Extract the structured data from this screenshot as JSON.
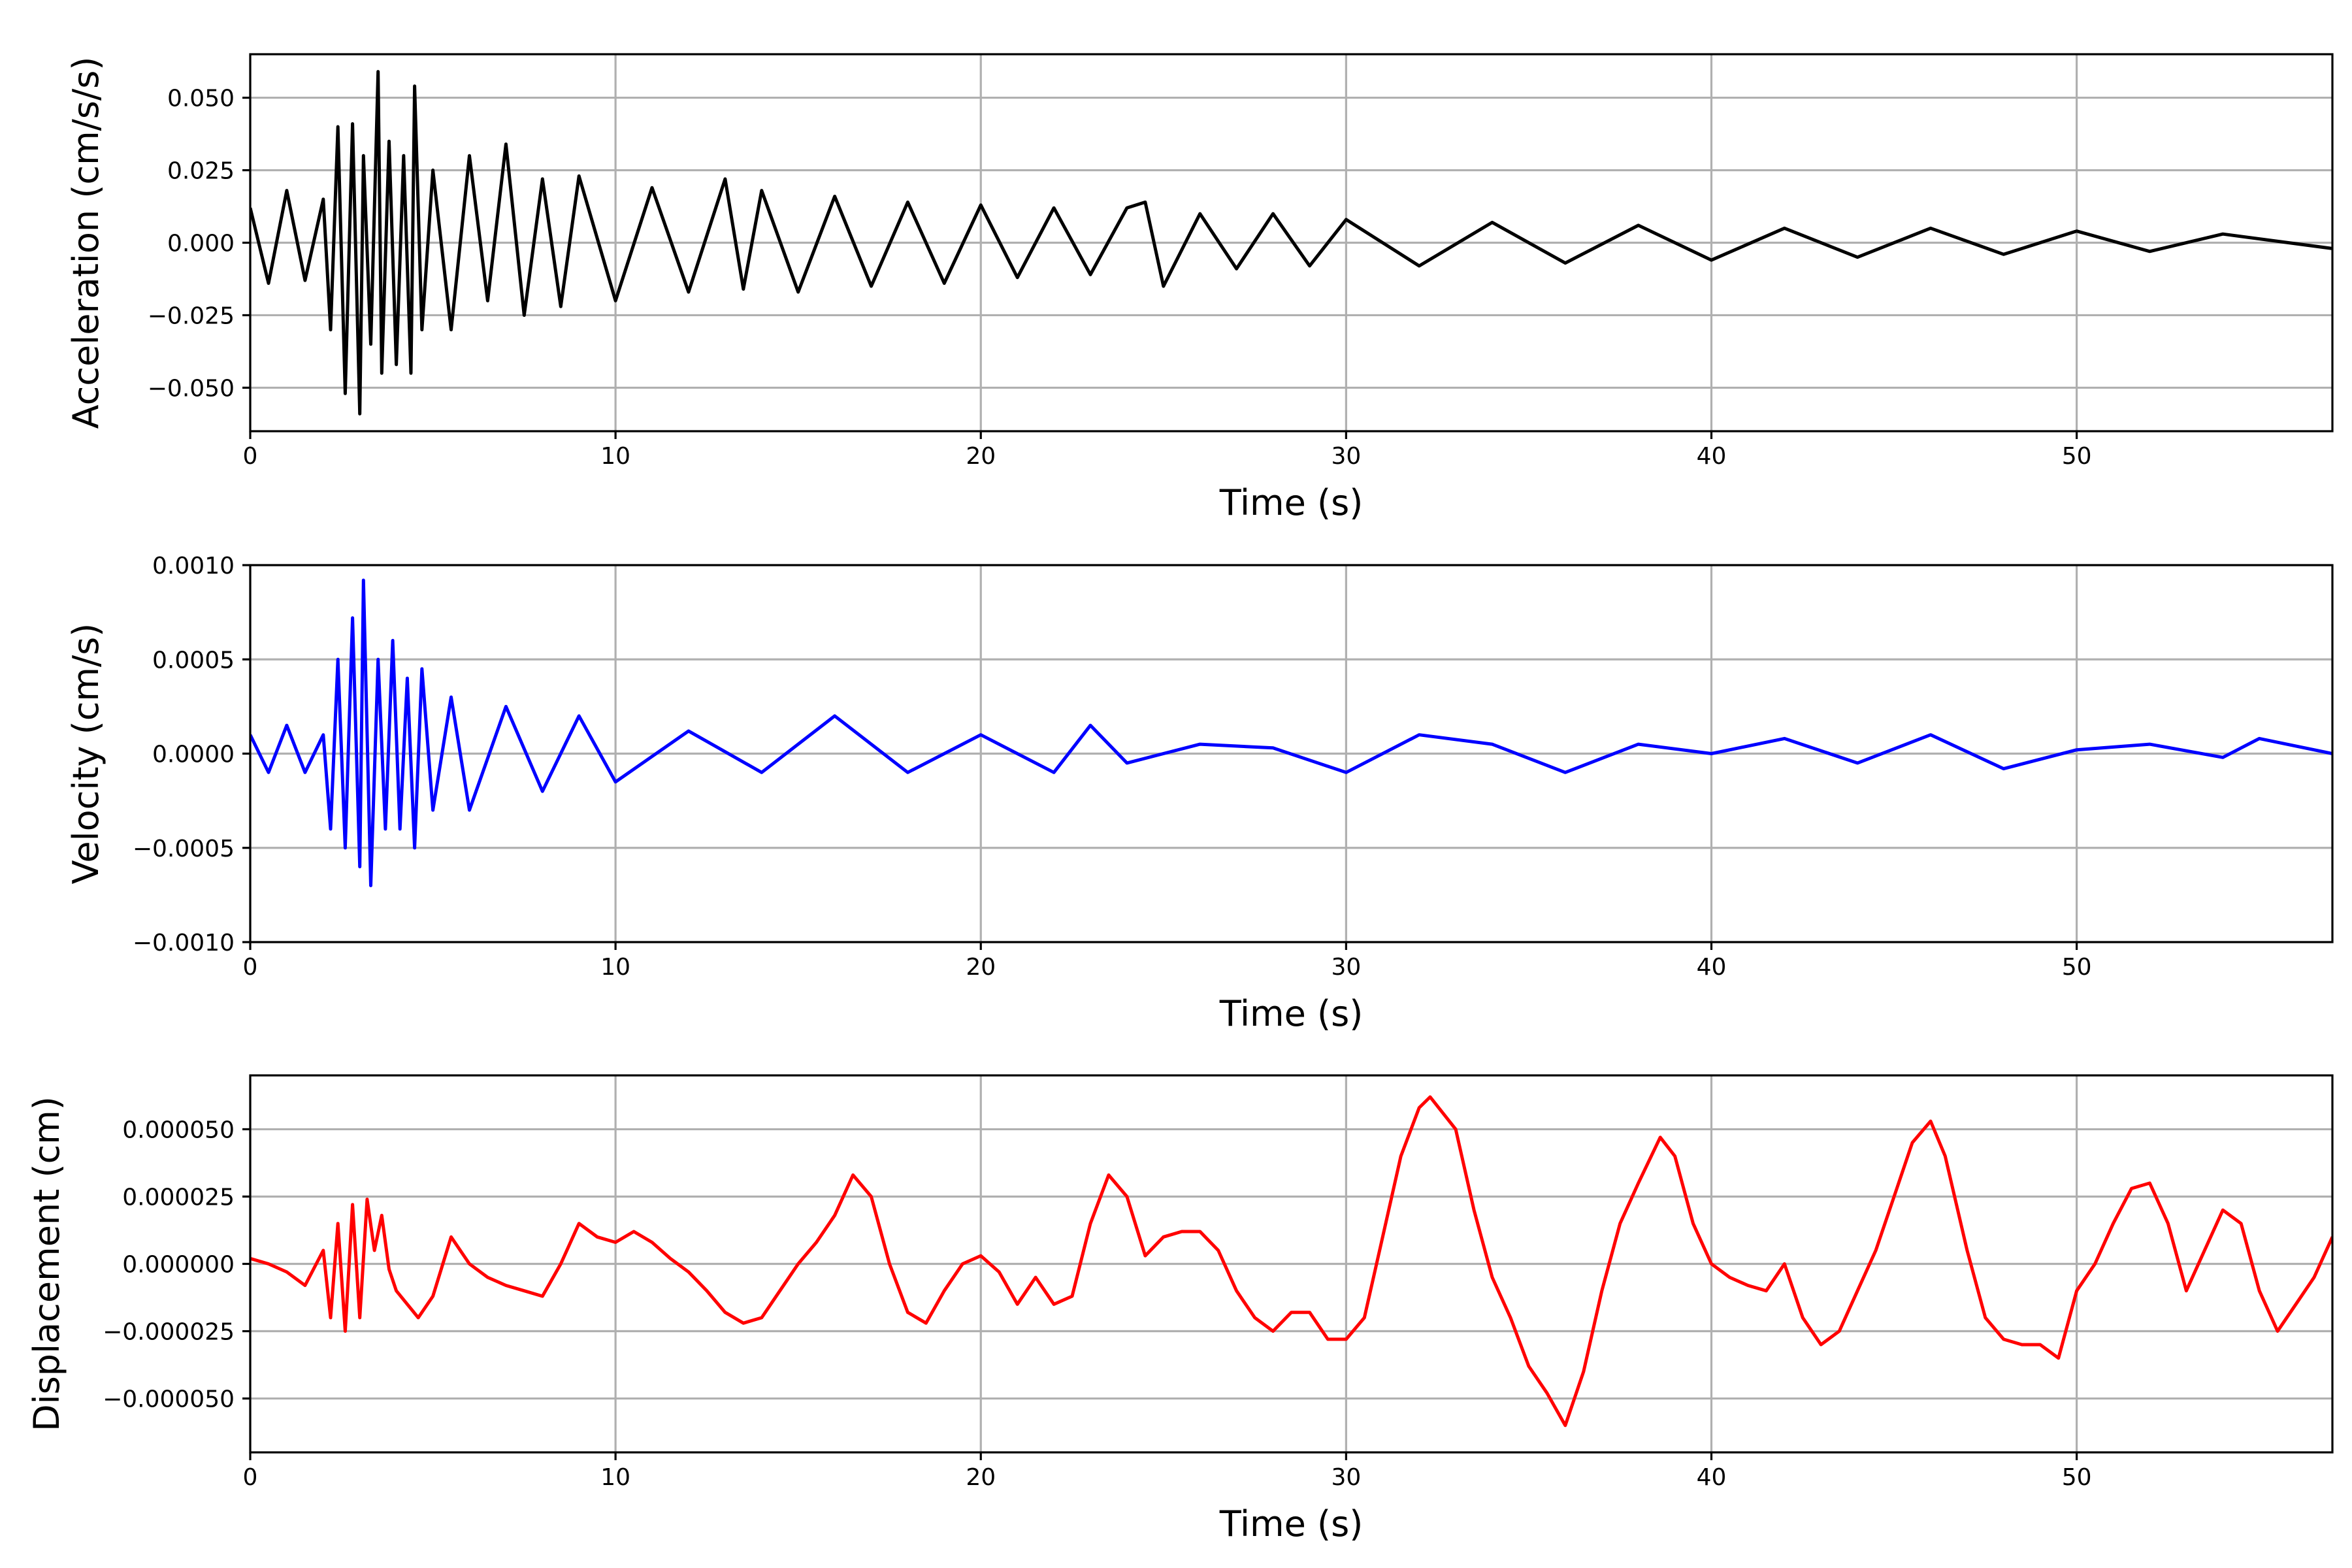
{
  "chart_data": [
    {
      "type": "line",
      "title": "",
      "xlabel": "Time (s)",
      "ylabel": "Acceleration (cm/s/s)",
      "xlim": [
        0,
        57
      ],
      "ylim": [
        -0.065,
        0.065
      ],
      "x_ticks": [
        0,
        10,
        20,
        30,
        40,
        50
      ],
      "y_ticks": [
        -0.05,
        -0.025,
        0,
        0.025,
        0.05
      ],
      "x_tick_labels": [
        "0",
        "10",
        "20",
        "30",
        "40",
        "50"
      ],
      "y_tick_labels": [
        "−0.050",
        "−0.025",
        "0.000",
        "0.025",
        "0.050"
      ],
      "grid": true,
      "color": "#000000",
      "series": [
        {
          "x": [
            0,
            0.5,
            1,
            1.5,
            2,
            2.2,
            2.4,
            2.6,
            2.8,
            3.0,
            3.1,
            3.3,
            3.5,
            3.6,
            3.8,
            4.0,
            4.2,
            4.4,
            4.5,
            4.7,
            5.0,
            5.5,
            6.0,
            6.5,
            7.0,
            7.5,
            8.0,
            8.5,
            9.0,
            10,
            11,
            12,
            13,
            13.5,
            14,
            15,
            16,
            17,
            18,
            19,
            20,
            21,
            22,
            23,
            24,
            24.5,
            25,
            26,
            27,
            28,
            29,
            30,
            32,
            34,
            36,
            38,
            40,
            42,
            44,
            46,
            48,
            50,
            52,
            54,
            57
          ],
          "y": [
            0.012,
            -0.014,
            0.018,
            -0.013,
            0.015,
            -0.03,
            0.04,
            -0.052,
            0.041,
            -0.059,
            0.03,
            -0.035,
            0.059,
            -0.045,
            0.035,
            -0.042,
            0.03,
            -0.045,
            0.054,
            -0.03,
            0.025,
            -0.03,
            0.03,
            -0.02,
            0.034,
            -0.025,
            0.022,
            -0.022,
            0.023,
            -0.02,
            0.019,
            -0.017,
            0.022,
            -0.016,
            0.018,
            -0.017,
            0.016,
            -0.015,
            0.014,
            -0.014,
            0.013,
            -0.012,
            0.012,
            -0.011,
            0.012,
            0.014,
            -0.015,
            0.01,
            -0.009,
            0.01,
            -0.008,
            0.008,
            -0.008,
            0.007,
            -0.007,
            0.006,
            -0.006,
            0.005,
            -0.005,
            0.005,
            -0.004,
            0.004,
            -0.003,
            0.003,
            -0.002
          ]
        }
      ]
    },
    {
      "type": "line",
      "title": "",
      "xlabel": "Time (s)",
      "ylabel": "Velocity (cm/s)",
      "xlim": [
        0,
        57
      ],
      "ylim": [
        -0.001,
        0.001
      ],
      "x_ticks": [
        0,
        10,
        20,
        30,
        40,
        50
      ],
      "y_ticks": [
        -0.001,
        -0.0005,
        0,
        0.0005,
        0.001
      ],
      "x_tick_labels": [
        "0",
        "10",
        "20",
        "30",
        "40",
        "50"
      ],
      "y_tick_labels": [
        "−0.0010",
        "−0.0005",
        "0.0000",
        "0.0005",
        "0.0010"
      ],
      "grid": true,
      "color": "#0000ff",
      "series": [
        {
          "x": [
            0,
            0.5,
            1,
            1.5,
            2,
            2.2,
            2.4,
            2.6,
            2.8,
            3.0,
            3.1,
            3.3,
            3.5,
            3.7,
            3.9,
            4.1,
            4.3,
            4.5,
            4.7,
            5.0,
            5.5,
            6.0,
            7.0,
            8.0,
            9.0,
            10,
            12,
            14,
            16,
            18,
            20,
            22,
            23,
            24,
            26,
            28,
            30,
            32,
            34,
            36,
            38,
            40,
            42,
            44,
            46,
            48,
            50,
            52,
            54,
            55,
            57
          ],
          "y": [
            0.0001,
            -0.0001,
            0.00015,
            -0.0001,
            0.0001,
            -0.0004,
            0.0005,
            -0.0005,
            0.00072,
            -0.0006,
            0.00092,
            -0.0007,
            0.0005,
            -0.0004,
            0.0006,
            -0.0004,
            0.0004,
            -0.0005,
            0.00045,
            -0.0003,
            0.0003,
            -0.0003,
            0.00025,
            -0.0002,
            0.0002,
            -0.00015,
            0.00012,
            -0.0001,
            0.0002,
            -0.0001,
            0.0001,
            -0.0001,
            0.00015,
            -5e-05,
            5e-05,
            3e-05,
            -0.0001,
            0.0001,
            5e-05,
            -0.0001,
            5e-05,
            0.0,
            8e-05,
            -5e-05,
            0.0001,
            -8e-05,
            2e-05,
            5e-05,
            -2e-05,
            8e-05,
            0.0
          ]
        }
      ]
    },
    {
      "type": "line",
      "title": "",
      "xlabel": "Time (s)",
      "ylabel": "Displacement (cm)",
      "xlim": [
        0,
        57
      ],
      "ylim": [
        -7e-05,
        7e-05
      ],
      "x_ticks": [
        0,
        10,
        20,
        30,
        40,
        50
      ],
      "y_ticks": [
        -5e-05,
        -2.5e-05,
        0,
        2.5e-05,
        5e-05
      ],
      "x_tick_labels": [
        "0",
        "10",
        "20",
        "30",
        "40",
        "50"
      ],
      "y_tick_labels": [
        "−0.000050",
        "−0.000025",
        "0.000000",
        "0.000025",
        "0.000050"
      ],
      "grid": true,
      "color": "#ff0000",
      "series": [
        {
          "x": [
            0,
            0.5,
            1.0,
            1.5,
            2.0,
            2.2,
            2.4,
            2.6,
            2.8,
            3.0,
            3.2,
            3.4,
            3.6,
            3.8,
            4.0,
            4.3,
            4.6,
            5.0,
            5.5,
            6.0,
            6.5,
            7.0,
            7.5,
            8.0,
            8.5,
            9.0,
            9.5,
            10.0,
            10.5,
            11.0,
            11.5,
            12.0,
            12.5,
            13.0,
            13.5,
            14.0,
            14.5,
            15.0,
            15.5,
            16.0,
            16.5,
            17.0,
            17.5,
            18.0,
            18.5,
            19.0,
            19.5,
            20.0,
            20.5,
            21.0,
            21.5,
            22.0,
            22.5,
            23.0,
            23.5,
            24.0,
            24.5,
            25.0,
            25.5,
            26.0,
            26.5,
            27.0,
            27.5,
            28.0,
            28.5,
            29.0,
            29.5,
            30.0,
            30.5,
            31.0,
            31.5,
            32.0,
            32.3,
            33.0,
            33.5,
            34.0,
            34.5,
            35.0,
            35.5,
            36.0,
            36.5,
            37.0,
            37.5,
            38.0,
            38.6,
            39.0,
            39.5,
            40.0,
            40.5,
            41.0,
            41.5,
            42.0,
            42.5,
            43.0,
            43.5,
            44.0,
            44.5,
            45.0,
            45.5,
            46.0,
            46.4,
            47.0,
            47.5,
            48.0,
            48.5,
            49.0,
            49.5,
            50.0,
            50.5,
            51.0,
            51.5,
            52.0,
            52.5,
            53.0,
            53.5,
            54.0,
            54.5,
            55.0,
            55.5,
            56.0,
            56.5,
            57.0
          ],
          "y": [
            2e-06,
            0.0,
            -3e-06,
            -8e-06,
            5e-06,
            -2e-05,
            1.5e-05,
            -2.5e-05,
            2.2e-05,
            -2e-05,
            2.4e-05,
            5e-06,
            1.8e-05,
            -2e-06,
            -1e-05,
            -1.5e-05,
            -2e-05,
            -1.2e-05,
            1e-05,
            0.0,
            -5e-06,
            -8e-06,
            -1e-05,
            -1.2e-05,
            0.0,
            1.5e-05,
            1e-05,
            8e-06,
            1.2e-05,
            8e-06,
            2e-06,
            -3e-06,
            -1e-05,
            -1.8e-05,
            -2.2e-05,
            -2e-05,
            -1e-05,
            0.0,
            8e-06,
            1.8e-05,
            3.3e-05,
            2.5e-05,
            0.0,
            -1.8e-05,
            -2.2e-05,
            -1e-05,
            0.0,
            3e-06,
            -3e-06,
            -1.5e-05,
            -5e-06,
            -1.5e-05,
            -1.2e-05,
            1.5e-05,
            3.3e-05,
            2.5e-05,
            3e-06,
            1e-05,
            1.2e-05,
            1.2e-05,
            5e-06,
            -1e-05,
            -2e-05,
            -2.5e-05,
            -1.8e-05,
            -1.8e-05,
            -2.8e-05,
            -2.8e-05,
            -2e-05,
            1e-05,
            4e-05,
            5.8e-05,
            6.2e-05,
            5e-05,
            2e-05,
            -5e-06,
            -2e-05,
            -3.8e-05,
            -4.8e-05,
            -6e-05,
            -4e-05,
            -1e-05,
            1.5e-05,
            3e-05,
            4.7e-05,
            4e-05,
            1.5e-05,
            0.0,
            -5e-06,
            -8e-06,
            -1e-05,
            0.0,
            -2e-05,
            -3e-05,
            -2.5e-05,
            -1e-05,
            5e-06,
            2.5e-05,
            4.5e-05,
            5.3e-05,
            4e-05,
            5e-06,
            -2e-05,
            -2.8e-05,
            -3e-05,
            -3e-05,
            -3.5e-05,
            -1e-05,
            0.0,
            1.5e-05,
            2.8e-05,
            3e-05,
            1.5e-05,
            -1e-05,
            5e-06,
            2e-05,
            1.5e-05,
            -1e-05,
            -2.5e-05,
            -1.5e-05,
            -5e-06,
            1e-05
          ]
        }
      ]
    }
  ]
}
